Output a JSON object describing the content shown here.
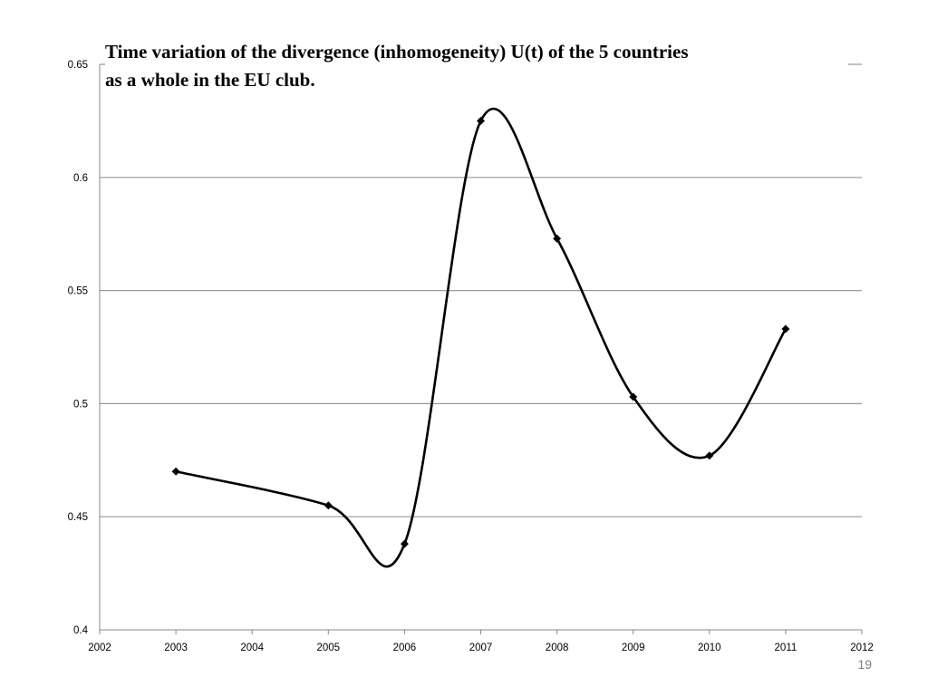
{
  "chart_data": {
    "type": "line",
    "title": "Time variation of the divergence (inhomogeneity) U(t) of the 5 countries as a whole in the EU club.",
    "title_lines": [
      "Time variation of the divergence (inhomogeneity) U(t) of the 5 countries",
      "as a whole in the EU club."
    ],
    "xlabel": "",
    "ylabel": "",
    "xlim": [
      2002,
      2012
    ],
    "ylim": [
      0.4,
      0.65
    ],
    "x_ticks": [
      2002,
      2003,
      2004,
      2005,
      2006,
      2007,
      2008,
      2009,
      2010,
      2011,
      2012
    ],
    "y_ticks": [
      0.4,
      0.45,
      0.5,
      0.55,
      0.6,
      0.65
    ],
    "y_tick_labels": [
      "0.4",
      "0.45",
      "0.5",
      "0.55",
      "0.6",
      "0.65"
    ],
    "grid": true,
    "smooth": true,
    "marker": "diamond",
    "series": [
      {
        "name": "U(t)",
        "x": [
          2003,
          2005,
          2006,
          2007,
          2008,
          2009,
          2010,
          2011
        ],
        "y": [
          0.47,
          0.455,
          0.438,
          0.625,
          0.573,
          0.503,
          0.477,
          0.533
        ],
        "color": "#000000"
      }
    ]
  },
  "slide": {
    "page_number": "19"
  },
  "colors": {
    "grid": "#999999",
    "axis": "#888888",
    "line": "#000000",
    "page_number": "#7f7f7f"
  }
}
